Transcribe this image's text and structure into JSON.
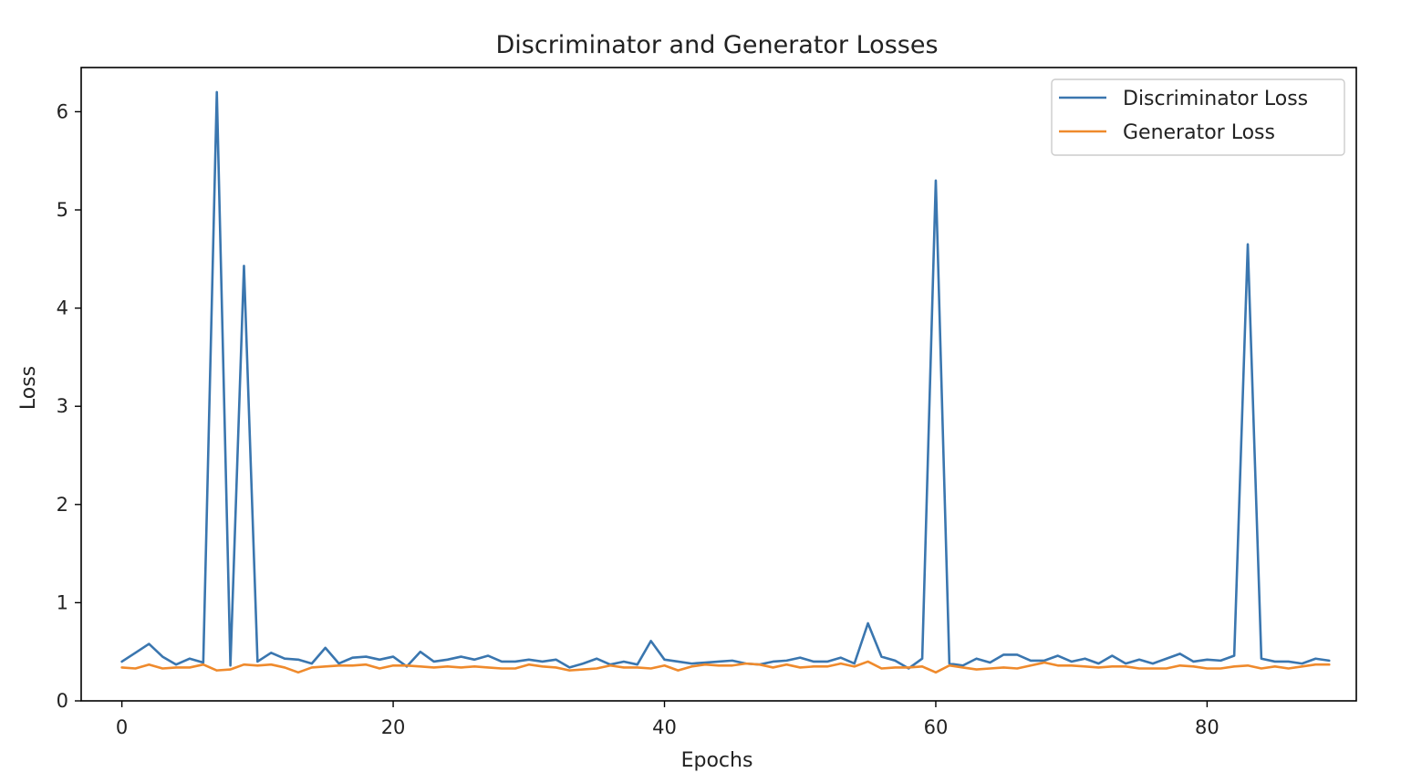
{
  "chart_data": {
    "type": "line",
    "title": "Discriminator and Generator Losses",
    "xlabel": "Epochs",
    "ylabel": "Loss",
    "xlim": [
      -3,
      91
    ],
    "ylim": [
      0,
      6.45
    ],
    "xticks": [
      0,
      20,
      40,
      60,
      80
    ],
    "yticks": [
      0,
      1,
      2,
      3,
      4,
      5,
      6
    ],
    "grid": false,
    "legend_position": "top-right",
    "x": [
      0,
      1,
      2,
      3,
      4,
      5,
      6,
      7,
      8,
      9,
      10,
      11,
      12,
      13,
      14,
      15,
      16,
      17,
      18,
      19,
      20,
      21,
      22,
      23,
      24,
      25,
      26,
      27,
      28,
      29,
      30,
      31,
      32,
      33,
      34,
      35,
      36,
      37,
      38,
      39,
      40,
      41,
      42,
      43,
      44,
      45,
      46,
      47,
      48,
      49,
      50,
      51,
      52,
      53,
      54,
      55,
      56,
      57,
      58,
      59,
      60,
      61,
      62,
      63,
      64,
      65,
      66,
      67,
      68,
      69,
      70,
      71,
      72,
      73,
      74,
      75,
      76,
      77,
      78,
      79,
      80,
      81,
      82,
      83,
      84,
      85,
      86,
      87,
      88,
      89
    ],
    "series": [
      {
        "name": "Discriminator Loss",
        "color": "#3a76af",
        "values": [
          0.4,
          0.49,
          0.58,
          0.45,
          0.37,
          0.43,
          0.39,
          6.2,
          0.36,
          4.43,
          0.4,
          0.49,
          0.43,
          0.42,
          0.38,
          0.54,
          0.38,
          0.44,
          0.45,
          0.42,
          0.45,
          0.35,
          0.5,
          0.4,
          0.42,
          0.45,
          0.42,
          0.46,
          0.4,
          0.4,
          0.42,
          0.4,
          0.42,
          0.34,
          0.38,
          0.43,
          0.37,
          0.4,
          0.37,
          0.61,
          0.42,
          0.4,
          0.38,
          0.39,
          0.4,
          0.41,
          0.38,
          0.37,
          0.4,
          0.41,
          0.44,
          0.4,
          0.4,
          0.44,
          0.38,
          0.79,
          0.45,
          0.41,
          0.33,
          0.43,
          5.3,
          0.38,
          0.36,
          0.43,
          0.39,
          0.47,
          0.47,
          0.41,
          0.41,
          0.46,
          0.4,
          0.43,
          0.38,
          0.46,
          0.38,
          0.42,
          0.38,
          0.43,
          0.48,
          0.4,
          0.42,
          0.41,
          0.46,
          4.65,
          0.43,
          0.4,
          0.4,
          0.38,
          0.43,
          0.41
        ]
      },
      {
        "name": "Generator Loss",
        "color": "#ef8a2c",
        "values": [
          0.34,
          0.33,
          0.37,
          0.33,
          0.34,
          0.34,
          0.37,
          0.31,
          0.32,
          0.37,
          0.36,
          0.37,
          0.34,
          0.29,
          0.34,
          0.35,
          0.36,
          0.36,
          0.37,
          0.33,
          0.36,
          0.36,
          0.35,
          0.34,
          0.35,
          0.34,
          0.35,
          0.34,
          0.33,
          0.33,
          0.37,
          0.35,
          0.34,
          0.31,
          0.32,
          0.33,
          0.36,
          0.34,
          0.34,
          0.33,
          0.36,
          0.31,
          0.35,
          0.37,
          0.36,
          0.36,
          0.38,
          0.37,
          0.34,
          0.37,
          0.34,
          0.35,
          0.35,
          0.38,
          0.35,
          0.4,
          0.33,
          0.34,
          0.34,
          0.35,
          0.29,
          0.36,
          0.34,
          0.32,
          0.33,
          0.34,
          0.33,
          0.36,
          0.39,
          0.36,
          0.36,
          0.35,
          0.34,
          0.35,
          0.35,
          0.33,
          0.33,
          0.33,
          0.36,
          0.35,
          0.33,
          0.33,
          0.35,
          0.36,
          0.33,
          0.35,
          0.33,
          0.35,
          0.37,
          0.37
        ]
      }
    ]
  }
}
